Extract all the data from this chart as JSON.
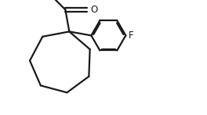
{
  "background_color": "#ffffff",
  "line_color": "#1a1a1a",
  "text_color": "#1a1a1a",
  "line_width": 1.6,
  "font_size": 8.5,
  "figsize": [
    2.64,
    1.47
  ],
  "dpi": 100,
  "xlim": [
    0,
    2.64
  ],
  "ylim": [
    0,
    1.47
  ]
}
